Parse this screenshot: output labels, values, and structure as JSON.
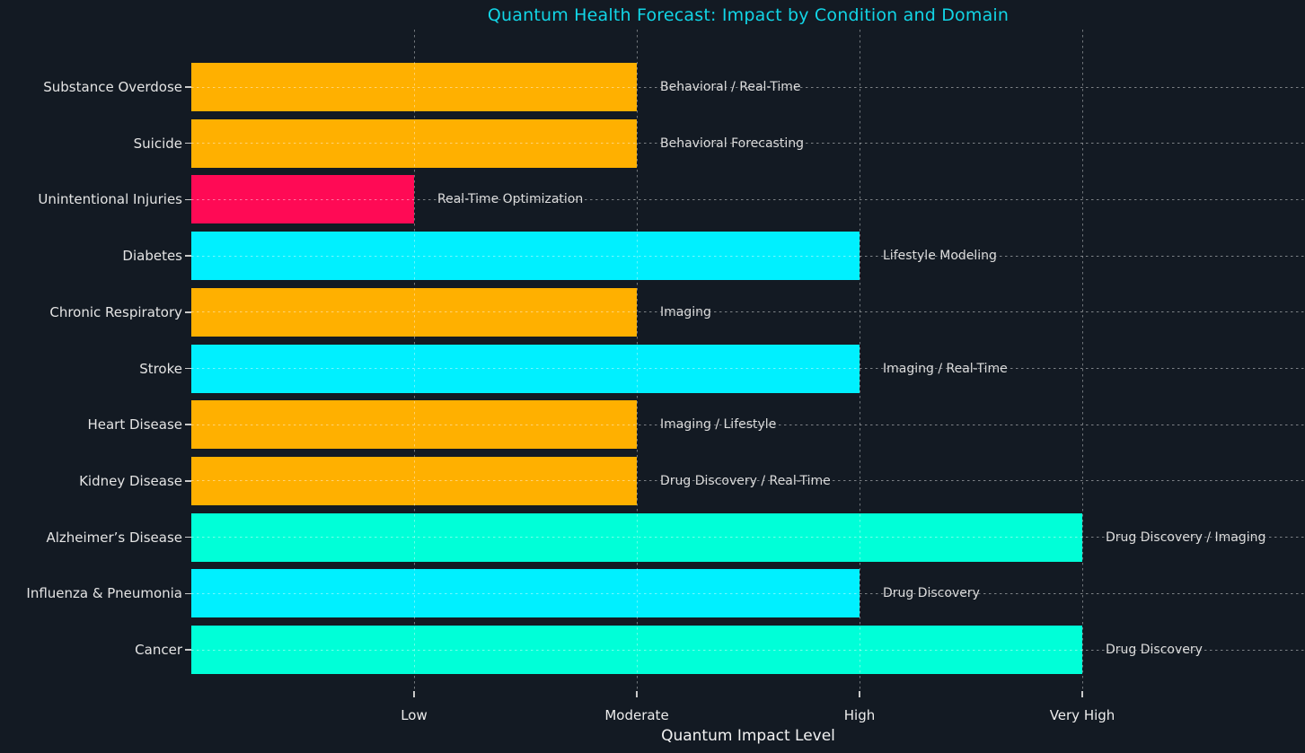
{
  "figure": {
    "background_color": "#131A23",
    "title_color": "#12D5E6",
    "grid_color": "rgba(255,255,255,0.45)",
    "text_color": "#E4E4E4"
  },
  "chart_data": {
    "type": "bar",
    "orientation": "horizontal",
    "title": "Quantum Health Forecast: Impact by Condition and Domain",
    "xlabel": "Quantum Impact Level",
    "ylabel": "",
    "xlim": [
      0,
      5
    ],
    "grid": "dashed gridlines on both axes, drawn over bars",
    "legend": "none",
    "x_ticks": [
      {
        "label": "Low",
        "value": 1
      },
      {
        "label": "Moderate",
        "value": 2
      },
      {
        "label": "High",
        "value": 3
      },
      {
        "label": "Very High",
        "value": 4
      }
    ],
    "impact_colors": {
      "Low": "#FF0A55",
      "Moderate": "#FFB000",
      "High": "#00F0FF",
      "Very High": "#00FFD8"
    },
    "rows": [
      {
        "condition": "Substance Overdose",
        "impact": "Moderate",
        "value": 2,
        "domain": "Behavioral / Real-Time"
      },
      {
        "condition": "Suicide",
        "impact": "Moderate",
        "value": 2,
        "domain": "Behavioral Forecasting"
      },
      {
        "condition": "Unintentional Injuries",
        "impact": "Low",
        "value": 1,
        "domain": "Real-Time Optimization"
      },
      {
        "condition": "Diabetes",
        "impact": "High",
        "value": 3,
        "domain": "Lifestyle Modeling"
      },
      {
        "condition": "Chronic Respiratory",
        "impact": "Moderate",
        "value": 2,
        "domain": "Imaging"
      },
      {
        "condition": "Stroke",
        "impact": "High",
        "value": 3,
        "domain": "Imaging / Real-Time"
      },
      {
        "condition": "Heart Disease",
        "impact": "Moderate",
        "value": 2,
        "domain": "Imaging / Lifestyle"
      },
      {
        "condition": "Kidney Disease",
        "impact": "Moderate",
        "value": 2,
        "domain": "Drug Discovery / Real-Time"
      },
      {
        "condition": "Alzheimer’s Disease",
        "impact": "Very High",
        "value": 4,
        "domain": "Drug Discovery / Imaging"
      },
      {
        "condition": "Influenza & Pneumonia",
        "impact": "High",
        "value": 3,
        "domain": "Drug Discovery"
      },
      {
        "condition": "Cancer",
        "impact": "Very High",
        "value": 4,
        "domain": "Drug Discovery"
      }
    ]
  }
}
